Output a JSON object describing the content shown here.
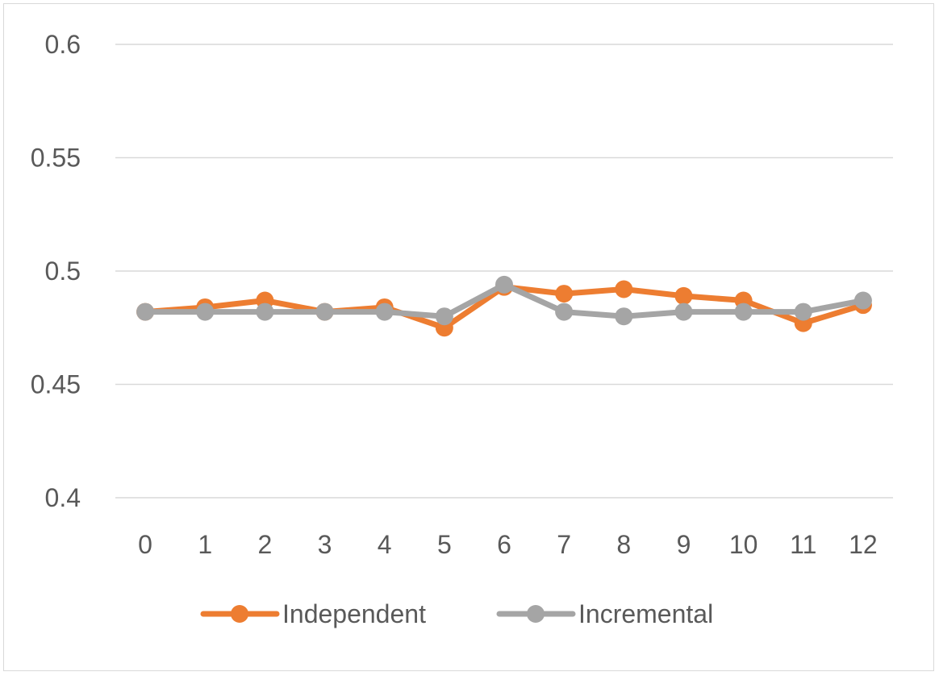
{
  "chart_data": {
    "type": "line",
    "title": "",
    "xlabel": "",
    "ylabel": "",
    "categories": [
      "0",
      "1",
      "2",
      "3",
      "4",
      "5",
      "6",
      "7",
      "8",
      "9",
      "10",
      "11",
      "12"
    ],
    "ylim": [
      0.4,
      0.6
    ],
    "yticks": [
      0.4,
      0.45,
      0.5,
      0.55,
      0.6
    ],
    "ytick_labels": [
      "0.4",
      "0.45",
      "0.5",
      "0.55",
      "0.6"
    ],
    "grid": true,
    "legend_position": "bottom",
    "series": [
      {
        "name": "Independent",
        "color": "#ED7D31",
        "values": [
          0.482,
          0.484,
          0.487,
          0.482,
          0.484,
          0.475,
          0.493,
          0.49,
          0.492,
          0.489,
          0.487,
          0.477,
          0.485
        ]
      },
      {
        "name": "Incremental",
        "color": "#A5A5A5",
        "values": [
          0.482,
          0.482,
          0.482,
          0.482,
          0.482,
          0.48,
          0.494,
          0.482,
          0.48,
          0.482,
          0.482,
          0.482,
          0.487
        ]
      }
    ]
  }
}
